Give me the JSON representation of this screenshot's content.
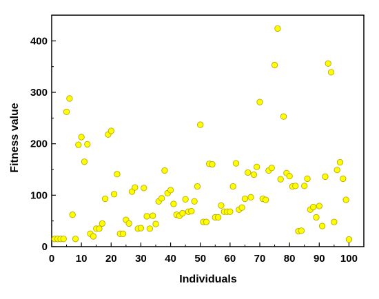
{
  "chart_data": {
    "type": "scatter",
    "title": "",
    "xlabel": "Individuals",
    "ylabel": "Fitness value",
    "xlim": [
      0,
      105
    ],
    "ylim": [
      0,
      450
    ],
    "xticks": [
      0,
      10,
      20,
      30,
      40,
      50,
      60,
      70,
      80,
      90,
      100
    ],
    "yticks": [
      0,
      100,
      200,
      300,
      400
    ],
    "grid": false,
    "legend": "none",
    "marker_color": "#ffff00",
    "marker_edge_color": "#b8a800",
    "series": [
      {
        "x": [
          1,
          2,
          3,
          4,
          5,
          6,
          7,
          8,
          9,
          10,
          11,
          12,
          13,
          14,
          15,
          16,
          17,
          18,
          19,
          20,
          21,
          22,
          23,
          24,
          25,
          26,
          27,
          28,
          29,
          30,
          31,
          32,
          33,
          34,
          35,
          36,
          37,
          38,
          39,
          40,
          41,
          42,
          43,
          44,
          45,
          46,
          47,
          48,
          49,
          50,
          51,
          52,
          53,
          54,
          55,
          56,
          57,
          58,
          59,
          60,
          61,
          62,
          63,
          64,
          65,
          66,
          67,
          68,
          69,
          70,
          71,
          72,
          73,
          74,
          75,
          76,
          77,
          78,
          79,
          80,
          81,
          82,
          83,
          84,
          85,
          86,
          87,
          88,
          89,
          90,
          91,
          92,
          93,
          94,
          95,
          96,
          97,
          98,
          99,
          100
        ],
        "y": [
          15,
          15,
          15,
          15,
          262,
          288,
          62,
          15,
          198,
          213,
          165,
          199,
          25,
          20,
          35,
          35,
          45,
          93,
          218,
          225,
          102,
          141,
          25,
          25,
          52,
          45,
          107,
          115,
          35,
          36,
          114,
          59,
          35,
          60,
          44,
          88,
          94,
          148,
          104,
          110,
          83,
          62,
          60,
          65,
          92,
          68,
          69,
          88,
          117,
          237,
          48,
          48,
          161,
          160,
          57,
          57,
          80,
          68,
          68,
          68,
          117,
          162,
          72,
          76,
          93,
          144,
          96,
          140,
          155,
          281,
          93,
          91,
          148,
          153,
          353,
          424,
          131,
          253,
          143,
          137,
          117,
          118,
          30,
          31,
          118,
          132,
          72,
          77,
          57,
          79,
          40,
          136,
          356,
          339,
          48,
          149,
          164,
          132,
          91,
          14
        ]
      }
    ]
  }
}
